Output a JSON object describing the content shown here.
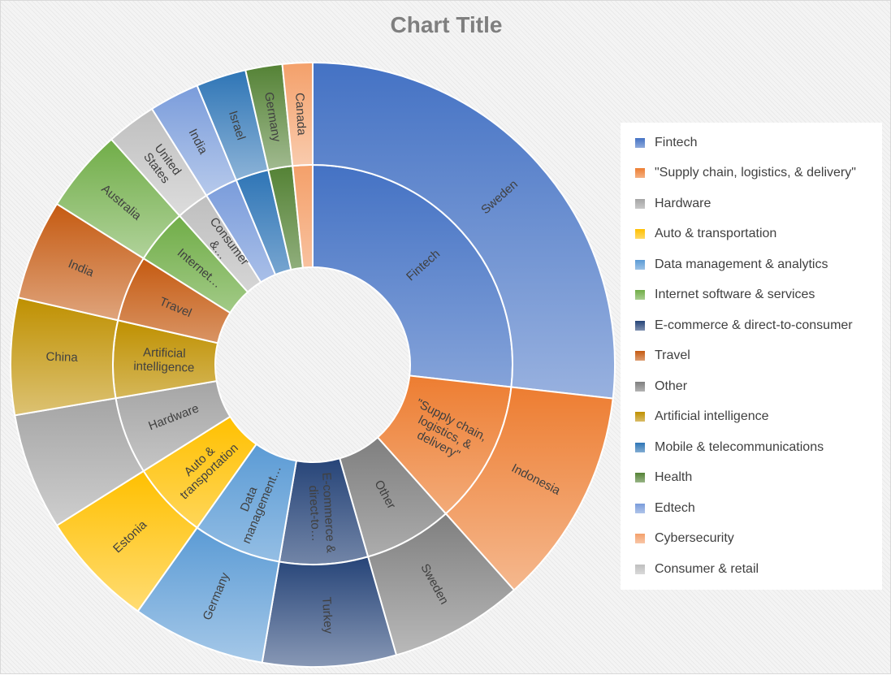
{
  "chart_data": {
    "type": "sunburst",
    "title": "Chart Title",
    "legend_position": "right",
    "categories": [
      {
        "name": "Fintech",
        "color": "#4472c4",
        "label": "Fintech",
        "value": 30,
        "children": [
          {
            "name": "Sweden",
            "value": 30
          }
        ]
      },
      {
        "name": "\"Supply chain, logistics, & delivery\"",
        "color": "#ed7d31",
        "label": "\"Supply chain, logistics, & delivery\"",
        "value": 13,
        "children": [
          {
            "name": "Indonesia",
            "value": 13
          }
        ]
      },
      {
        "name": "Other",
        "color": "#7f7f7f",
        "label": "Other",
        "value": 8,
        "children": [
          {
            "name": "Sweden",
            "value": 8
          }
        ]
      },
      {
        "name": "E-commerce & direct-to-consumer",
        "color": "#264478",
        "label": "E-commerce & direct-to…",
        "value": 8,
        "children": [
          {
            "name": "Turkey",
            "value": 8
          }
        ]
      },
      {
        "name": "Data management & analytics",
        "color": "#5b9bd5",
        "label": "Data management…",
        "value": 8,
        "children": [
          {
            "name": "Germany",
            "value": 8
          }
        ]
      },
      {
        "name": "Auto & transportation",
        "color": "#ffc000",
        "label": "Auto & transportation",
        "value": 7,
        "children": [
          {
            "name": "Estonia",
            "value": 7
          }
        ]
      },
      {
        "name": "Hardware",
        "color": "#a5a5a5",
        "label": "Hardware",
        "value": 7,
        "children": [
          {
            "name": "",
            "value": 7
          }
        ]
      },
      {
        "name": "Artificial intelligence",
        "color": "#bf9000",
        "label": "Artificial intelligence",
        "value": 7,
        "children": [
          {
            "name": "China",
            "value": 7
          }
        ]
      },
      {
        "name": "Travel",
        "color": "#c55a11",
        "label": "Travel",
        "value": 6,
        "children": [
          {
            "name": "India",
            "value": 6
          }
        ]
      },
      {
        "name": "Internet software & services",
        "color": "#70ad47",
        "label": "Internet…",
        "value": 5,
        "children": [
          {
            "name": "Australia",
            "value": 5
          }
        ]
      },
      {
        "name": "Consumer & retail",
        "color": "#bfbfbf",
        "label": "Consumer &…",
        "value": 3,
        "children": [
          {
            "name": "United States",
            "value": 3
          }
        ]
      },
      {
        "name": "Edtech",
        "color": "#7a9cdb",
        "label": "",
        "value": 3,
        "children": [
          {
            "name": "India",
            "value": 3
          }
        ]
      },
      {
        "name": "Mobile & telecommunications",
        "color": "#2e75b6",
        "label": "",
        "value": 3,
        "children": [
          {
            "name": "Israel",
            "value": 3
          }
        ]
      },
      {
        "name": "Health",
        "color": "#548235",
        "label": "",
        "value": 2.2,
        "children": [
          {
            "name": "Germany",
            "value": 2.2
          }
        ]
      },
      {
        "name": "Cybersecurity",
        "color": "#f4a06a",
        "label": "",
        "value": 1.8,
        "children": [
          {
            "name": "Canada",
            "value": 1.8
          }
        ]
      }
    ],
    "legend": [
      {
        "label": "Fintech",
        "color": "#4472c4"
      },
      {
        "label": "\"Supply chain, logistics, & delivery\"",
        "color": "#ed7d31"
      },
      {
        "label": "Hardware",
        "color": "#a5a5a5"
      },
      {
        "label": "Auto & transportation",
        "color": "#ffc000"
      },
      {
        "label": "Data management & analytics",
        "color": "#5b9bd5"
      },
      {
        "label": "Internet software & services",
        "color": "#70ad47"
      },
      {
        "label": "E-commerce & direct-to-consumer",
        "color": "#264478"
      },
      {
        "label": "Travel",
        "color": "#c55a11"
      },
      {
        "label": "Other",
        "color": "#7f7f7f"
      },
      {
        "label": "Artificial intelligence",
        "color": "#bf9000"
      },
      {
        "label": "Mobile & telecommunications",
        "color": "#2e75b6"
      },
      {
        "label": "Health",
        "color": "#548235"
      },
      {
        "label": "Edtech",
        "color": "#7a9cdb"
      },
      {
        "label": "Cybersecurity",
        "color": "#f4a06a"
      },
      {
        "label": "Consumer & retail",
        "color": "#bfbfbf"
      }
    ]
  }
}
